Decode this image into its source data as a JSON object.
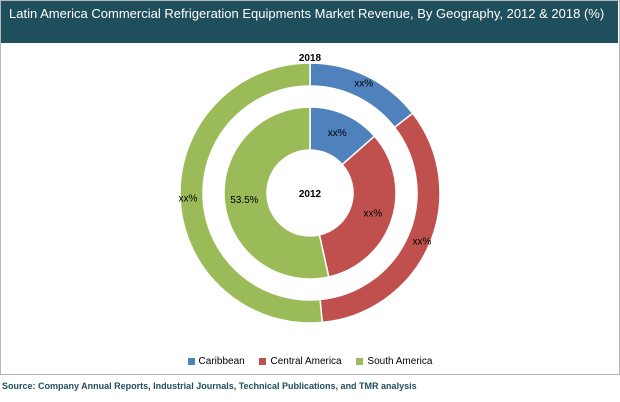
{
  "chart_data": {
    "type": "pie",
    "subtype": "donut-nested",
    "title": "Latin America Commercial Refrigeration Equipments Market Revenue, By Geography, 2012 & 2018 (%)",
    "categories": [
      "Caribbean",
      "Central America",
      "South America"
    ],
    "colors": [
      "#4f81bd",
      "#c0504d",
      "#9bbb59"
    ],
    "series": [
      {
        "name": "2012",
        "ring": "inner",
        "values": [
          13.5,
          33.0,
          53.5
        ],
        "labels": [
          "xx%",
          "xx%",
          "53.5%"
        ]
      },
      {
        "name": "2018",
        "ring": "outer",
        "values": [
          14.5,
          34.0,
          51.5
        ],
        "labels": [
          "xx%",
          "xx%",
          "xx%"
        ]
      }
    ],
    "legend": "bottom",
    "source": "Source: Company Annual Reports, Industrial Journals, Technical Publications, and TMR analysis"
  }
}
